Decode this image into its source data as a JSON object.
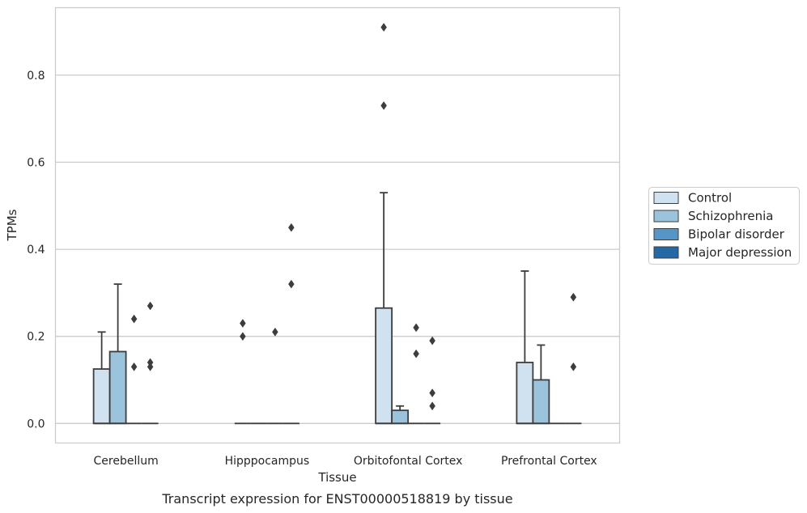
{
  "caption": "Transcript expression for ENST00000518819 by tissue",
  "chart_data": {
    "type": "box",
    "title": "",
    "xlabel": "Tissue",
    "ylabel": "TPMs",
    "ylim": [
      -0.045,
      0.955
    ],
    "yticks": [
      0.0,
      0.2,
      0.4,
      0.6,
      0.8
    ],
    "ytick_labels": [
      "0.0",
      "0.2",
      "0.4",
      "0.6",
      "0.8"
    ],
    "grid": "horizontal",
    "legend_position": "right",
    "categories": [
      "Cerebellum",
      "Hipppocampus",
      "Orbitofontal Cortex",
      "Prefrontal Cortex"
    ],
    "series": [
      {
        "name": "Control",
        "color": "#d0e1f0",
        "boxes": [
          {
            "q1": 0.0,
            "median": 0.0,
            "q3": 0.125,
            "whisker_low": 0.0,
            "whisker_high": 0.21,
            "outliers": []
          },
          {
            "q1": 0.0,
            "median": 0.0,
            "q3": 0.0,
            "whisker_low": 0.0,
            "whisker_high": 0.0,
            "outliers": [
              0.2,
              0.23
            ]
          },
          {
            "q1": 0.0,
            "median": 0.0,
            "q3": 0.265,
            "whisker_low": 0.0,
            "whisker_high": 0.53,
            "outliers": [
              0.73,
              0.91
            ]
          },
          {
            "q1": 0.0,
            "median": 0.0,
            "q3": 0.14,
            "whisker_low": 0.0,
            "whisker_high": 0.35,
            "outliers": []
          }
        ]
      },
      {
        "name": "Schizophrenia",
        "color": "#9cc3dc",
        "boxes": [
          {
            "q1": 0.0,
            "median": 0.0,
            "q3": 0.165,
            "whisker_low": 0.0,
            "whisker_high": 0.32,
            "outliers": []
          },
          {
            "q1": 0.0,
            "median": 0.0,
            "q3": 0.0,
            "whisker_low": 0.0,
            "whisker_high": 0.0,
            "outliers": []
          },
          {
            "q1": 0.0,
            "median": 0.0,
            "q3": 0.03,
            "whisker_low": 0.0,
            "whisker_high": 0.04,
            "outliers": []
          },
          {
            "q1": 0.0,
            "median": 0.0,
            "q3": 0.1,
            "whisker_low": 0.0,
            "whisker_high": 0.18,
            "outliers": []
          }
        ]
      },
      {
        "name": "Bipolar disorder",
        "color": "#5596c6",
        "boxes": [
          {
            "q1": 0.0,
            "median": 0.0,
            "q3": 0.0,
            "whisker_low": 0.0,
            "whisker_high": 0.0,
            "outliers": [
              0.13,
              0.24
            ]
          },
          {
            "q1": 0.0,
            "median": 0.0,
            "q3": 0.0,
            "whisker_low": 0.0,
            "whisker_high": 0.0,
            "outliers": [
              0.21
            ]
          },
          {
            "q1": 0.0,
            "median": 0.0,
            "q3": 0.0,
            "whisker_low": 0.0,
            "whisker_high": 0.0,
            "outliers": [
              0.16,
              0.22
            ]
          },
          {
            "q1": 0.0,
            "median": 0.0,
            "q3": 0.0,
            "whisker_low": 0.0,
            "whisker_high": 0.0,
            "outliers": []
          }
        ]
      },
      {
        "name": "Major depression",
        "color": "#2469a6",
        "boxes": [
          {
            "q1": 0.0,
            "median": 0.0,
            "q3": 0.0,
            "whisker_low": 0.0,
            "whisker_high": 0.0,
            "outliers": [
              0.13,
              0.14,
              0.27
            ]
          },
          {
            "q1": 0.0,
            "median": 0.0,
            "q3": 0.0,
            "whisker_low": 0.0,
            "whisker_high": 0.0,
            "outliers": [
              0.32,
              0.45
            ]
          },
          {
            "q1": 0.0,
            "median": 0.0,
            "q3": 0.0,
            "whisker_low": 0.0,
            "whisker_high": 0.0,
            "outliers": [
              0.04,
              0.07,
              0.19
            ]
          },
          {
            "q1": 0.0,
            "median": 0.0,
            "q3": 0.0,
            "whisker_low": 0.0,
            "whisker_high": 0.0,
            "outliers": [
              0.13,
              0.29
            ]
          }
        ]
      }
    ]
  }
}
